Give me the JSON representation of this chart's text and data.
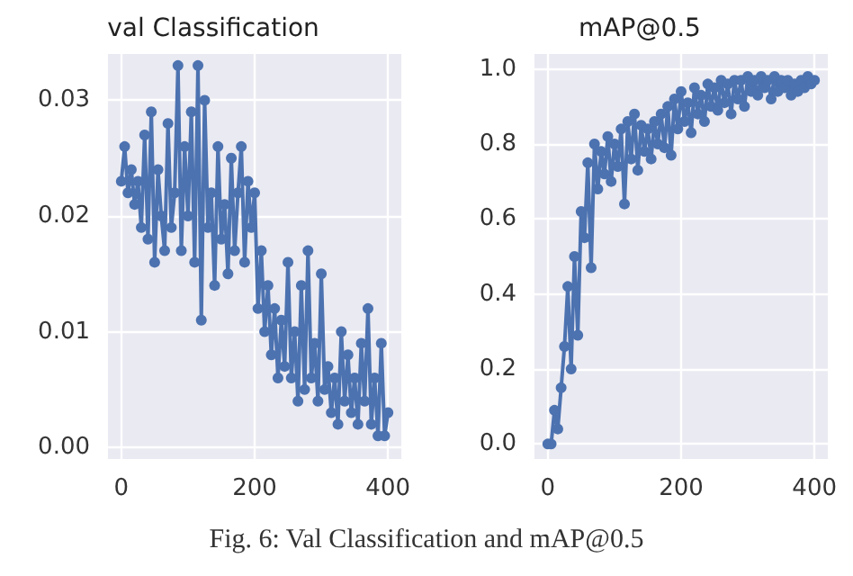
{
  "chart_data": [
    {
      "type": "line",
      "title": "val Classification",
      "annotations": [
        "Fig. 6: Val Classification and mAP@0.5"
      ],
      "marker": "circle",
      "line_style": "solid",
      "grid": true,
      "xlim": [
        -20,
        420
      ],
      "xticks": [
        0,
        200,
        400
      ],
      "ylim": [
        -0.001,
        0.034
      ],
      "yticks": [
        {
          "value": 0,
          "label": "0.00"
        },
        {
          "value": 0.01,
          "label": "0.01"
        },
        {
          "value": 0.02,
          "label": "0.02"
        },
        {
          "value": 0.03,
          "label": "0.03"
        }
      ],
      "x": [
        0,
        5,
        10,
        15,
        20,
        25,
        30,
        35,
        40,
        45,
        50,
        55,
        60,
        65,
        70,
        75,
        80,
        85,
        90,
        95,
        100,
        105,
        110,
        115,
        120,
        125,
        130,
        135,
        140,
        145,
        150,
        155,
        160,
        165,
        170,
        175,
        180,
        185,
        190,
        195,
        200,
        205,
        210,
        215,
        220,
        225,
        230,
        235,
        240,
        245,
        250,
        255,
        260,
        265,
        270,
        275,
        280,
        285,
        290,
        295,
        300,
        305,
        310,
        315,
        320,
        325,
        330,
        335,
        340,
        345,
        350,
        355,
        360,
        365,
        370,
        375,
        380,
        385,
        390,
        395,
        400
      ],
      "series": [
        {
          "color": "#4c72b0",
          "values": [
            0.023,
            0.026,
            0.022,
            0.024,
            0.021,
            0.023,
            0.019,
            0.027,
            0.018,
            0.029,
            0.016,
            0.024,
            0.02,
            0.017,
            0.028,
            0.019,
            0.022,
            0.033,
            0.017,
            0.026,
            0.02,
            0.029,
            0.016,
            0.033,
            0.011,
            0.03,
            0.019,
            0.022,
            0.014,
            0.026,
            0.018,
            0.021,
            0.015,
            0.025,
            0.017,
            0.022,
            0.026,
            0.016,
            0.023,
            0.019,
            0.022,
            0.012,
            0.017,
            0.01,
            0.014,
            0.008,
            0.012,
            0.006,
            0.011,
            0.007,
            0.016,
            0.006,
            0.01,
            0.004,
            0.014,
            0.005,
            0.017,
            0.006,
            0.009,
            0.004,
            0.015,
            0.005,
            0.007,
            0.003,
            0.006,
            0.002,
            0.01,
            0.004,
            0.008,
            0.003,
            0.006,
            0.002,
            0.009,
            0.004,
            0.012,
            0.002,
            0.006,
            0.001,
            0.009,
            0.001,
            0.003
          ]
        }
      ]
    },
    {
      "type": "line",
      "title": "mAP@0.5",
      "marker": "circle",
      "line_style": "solid",
      "grid": true,
      "xlim": [
        -20,
        420
      ],
      "xticks": [
        0,
        200,
        400
      ],
      "ylim": [
        -0.04,
        1.04
      ],
      "yticks": [
        {
          "value": 0,
          "label": "0.0"
        },
        {
          "value": 0.2,
          "label": "0.2"
        },
        {
          "value": 0.4,
          "label": "0.4"
        },
        {
          "value": 0.6,
          "label": "0.6"
        },
        {
          "value": 0.8,
          "label": "0.8"
        },
        {
          "value": 1,
          "label": "1.0"
        }
      ],
      "x": [
        0,
        5,
        10,
        15,
        20,
        25,
        30,
        35,
        40,
        45,
        50,
        55,
        60,
        65,
        70,
        75,
        80,
        85,
        90,
        95,
        100,
        105,
        110,
        115,
        120,
        125,
        130,
        135,
        140,
        145,
        150,
        155,
        160,
        165,
        170,
        175,
        180,
        185,
        190,
        195,
        200,
        205,
        210,
        215,
        220,
        225,
        230,
        235,
        240,
        245,
        250,
        255,
        260,
        265,
        270,
        275,
        280,
        285,
        290,
        295,
        300,
        305,
        310,
        315,
        320,
        325,
        330,
        335,
        340,
        345,
        350,
        355,
        360,
        365,
        370,
        375,
        380,
        385,
        390,
        395,
        400
      ],
      "series": [
        {
          "color": "#4c72b0",
          "values": [
            0.0,
            0.0,
            0.09,
            0.04,
            0.15,
            0.26,
            0.42,
            0.2,
            0.5,
            0.29,
            0.62,
            0.55,
            0.75,
            0.47,
            0.8,
            0.68,
            0.78,
            0.72,
            0.82,
            0.7,
            0.8,
            0.74,
            0.84,
            0.64,
            0.86,
            0.76,
            0.88,
            0.73,
            0.85,
            0.78,
            0.84,
            0.76,
            0.86,
            0.8,
            0.88,
            0.79,
            0.9,
            0.77,
            0.92,
            0.84,
            0.94,
            0.86,
            0.91,
            0.83,
            0.95,
            0.88,
            0.93,
            0.86,
            0.96,
            0.9,
            0.95,
            0.89,
            0.97,
            0.91,
            0.96,
            0.88,
            0.97,
            0.92,
            0.97,
            0.9,
            0.98,
            0.94,
            0.97,
            0.93,
            0.98,
            0.95,
            0.97,
            0.92,
            0.98,
            0.94,
            0.97,
            0.95,
            0.97,
            0.93,
            0.96,
            0.94,
            0.97,
            0.95,
            0.98,
            0.96,
            0.97
          ]
        }
      ]
    }
  ]
}
